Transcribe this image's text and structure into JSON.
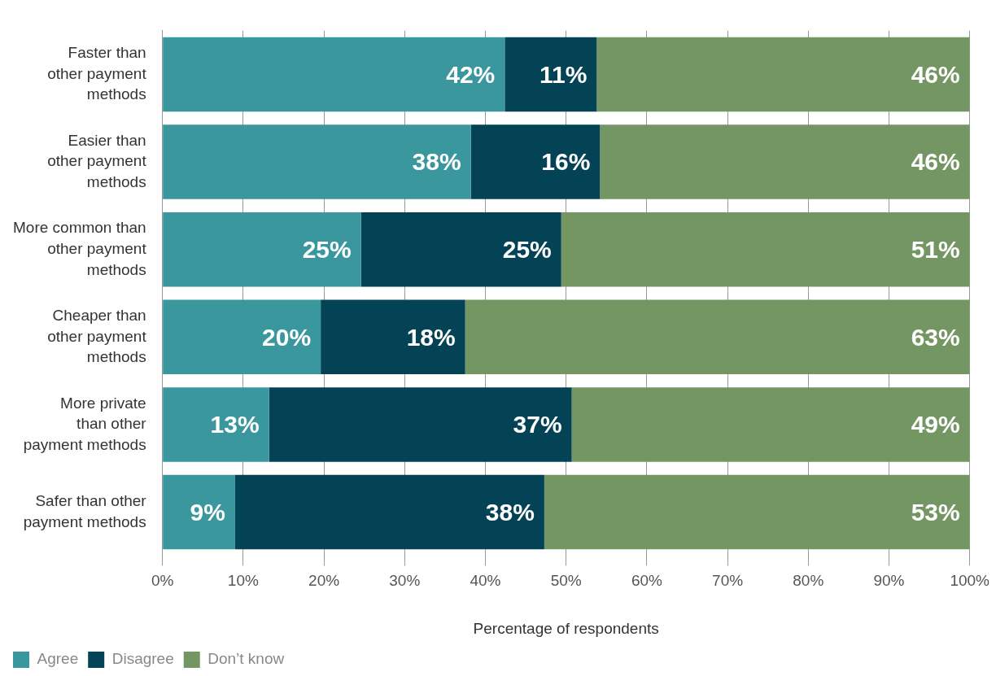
{
  "chart_data": {
    "type": "bar",
    "orientation": "horizontal",
    "stacked": true,
    "categories": [
      "Faster than other payment methods",
      "Easier than other payment methods",
      "More common than other payment methods",
      "Cheaper than other payment methods",
      "More private than other payment methods",
      "Safer than other payment methods"
    ],
    "series": [
      {
        "name": "Agree",
        "color": "#3a979e",
        "values": [
          42.4,
          38.2,
          24.6,
          19.6,
          13.2,
          9.0
        ],
        "value_labels": [
          "42%",
          "38%",
          "25%",
          "20%",
          "13%",
          "9%"
        ]
      },
      {
        "name": "Disagree",
        "color": "#044355",
        "values": [
          11.4,
          16.0,
          24.8,
          17.9,
          37.5,
          38.3
        ],
        "value_labels": [
          "11%",
          "16%",
          "25%",
          "18%",
          "37%",
          "38%"
        ]
      },
      {
        "name": "Don’t know",
        "color": "#749663",
        "values": [
          46.2,
          45.8,
          50.6,
          62.5,
          49.3,
          52.7
        ],
        "value_labels": [
          "46%",
          "46%",
          "51%",
          "63%",
          "49%",
          "53%"
        ]
      }
    ],
    "xlabel": "Percentage of respondents",
    "xlim": [
      0,
      100
    ],
    "xticks": [
      {
        "value": 0,
        "label": "0%"
      },
      {
        "value": 10,
        "label": "10%"
      },
      {
        "value": 20,
        "label": "20%"
      },
      {
        "value": 30,
        "label": "30%"
      },
      {
        "value": 40,
        "label": "40%"
      },
      {
        "value": 50,
        "label": "50%"
      },
      {
        "value": 60,
        "label": "60%"
      },
      {
        "value": 70,
        "label": "70%"
      },
      {
        "value": 80,
        "label": "80%"
      },
      {
        "value": 90,
        "label": "90%"
      },
      {
        "value": 100,
        "label": "100%"
      }
    ],
    "grid": "x",
    "legend": "bottom left"
  }
}
